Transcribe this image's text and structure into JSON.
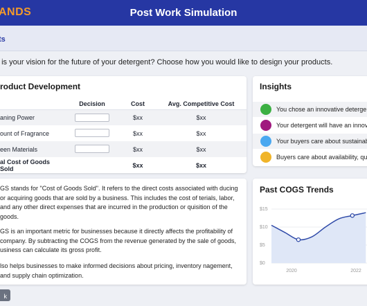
{
  "header": {
    "logo_text": "ANDS",
    "title": "Post Work Simulation"
  },
  "subnav": {
    "link_label": "ts"
  },
  "question": "t is your vision for the future of your detergent? Choose how you would like to design your products.",
  "product_development": {
    "title": "roduct Development",
    "columns": [
      "Decision",
      "Cost",
      "Avg. Competitive Cost"
    ],
    "rows": [
      {
        "label": "aning Power",
        "cost": "$xx",
        "avg": "$xx"
      },
      {
        "label": "ount of Fragrance",
        "cost": "$xx",
        "avg": "$xx"
      },
      {
        "label": "een Materials",
        "cost": "$xx",
        "avg": "$xx"
      }
    ],
    "total": {
      "label": "al Cost of Goods Sold",
      "cost": "$xx",
      "avg": "$xx"
    }
  },
  "info": {
    "paragraphs": [
      "GS stands for \"Cost of Goods Sold\". It refers to the direct costs associated with ducing or acquiring goods that are sold by a business. This includes the cost of terials, labor, and any other direct expenses that are incurred in the production or quisition of the goods.",
      "GS is an important metric for businesses because it directly affects the profitability of company. By subtracting the COGS from the revenue generated by the sale of goods, usiness can calculate its gross profit.",
      "lso helps businesses to make informed decisions about pricing, inventory nagement, and supply chain optimization."
    ]
  },
  "insights": {
    "title": "Insights",
    "items": [
      {
        "text": "You chose an innovative deterge",
        "color": "#3cb043"
      },
      {
        "text": "Your detergent will have an innov",
        "color": "#a0197e"
      },
      {
        "text": "Your buyers care about sustainab",
        "color": "#4aa8f0"
      },
      {
        "text": "Buyers care about availability, qu",
        "color": "#f0b429"
      }
    ]
  },
  "past_trends": {
    "title": "Past COGS Trends",
    "y_ticks": [
      "$15",
      "$10",
      "$5",
      "$0"
    ],
    "x_ticks": [
      "2020",
      "2022"
    ]
  },
  "chart_data": {
    "type": "area",
    "title": "Past COGS Trends",
    "x": [
      2019,
      2019.5,
      2020,
      2020.5,
      2021,
      2021.5,
      2022,
      2022.5
    ],
    "values": [
      10.5,
      8.5,
      6.5,
      7.3,
      10.0,
      12.3,
      13.2,
      14.0
    ],
    "highlight_points": [
      {
        "x": 2020,
        "y": 6.5
      },
      {
        "x": 2022,
        "y": 13.2
      }
    ],
    "ylim": [
      0,
      15
    ],
    "xlim": [
      2019,
      2022.8
    ],
    "y_ticks": [
      0,
      5,
      10,
      15
    ],
    "x_ticks": [
      2020,
      2022
    ],
    "grid": true,
    "line_color": "#2f4aa8",
    "fill_color": "#dfe7f7"
  },
  "footer": {
    "back_label": "k"
  }
}
